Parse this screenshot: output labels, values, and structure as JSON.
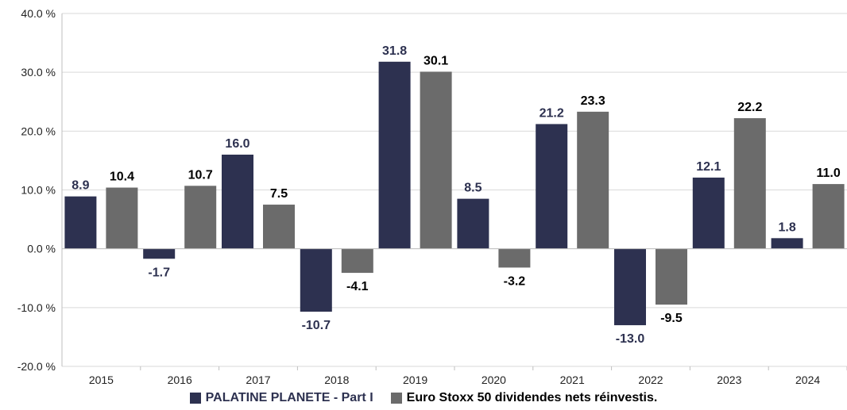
{
  "colors": {
    "palatine": "#2d3150",
    "eurostoxx": "#6b6b6b",
    "grid": "#d9d9d9",
    "axis": "#bfbfbf",
    "label_dark": "#2d3150",
    "label_black": "#000000"
  },
  "chart_data": {
    "type": "bar",
    "categories": [
      "2015",
      "2016",
      "2017",
      "2018",
      "2019",
      "2020",
      "2021",
      "2022",
      "2023",
      "2024"
    ],
    "series": [
      {
        "name": "PALATINE PLANETE - Part I",
        "values": [
          8.9,
          -1.7,
          16.0,
          -10.7,
          31.8,
          8.5,
          21.2,
          -13.0,
          12.1,
          1.8
        ],
        "labels": [
          "8.9",
          "-1.7",
          "16.0",
          "-10.7",
          "31.8",
          "8.5",
          "21.2",
          "-13.0",
          "12.1",
          "1.8"
        ]
      },
      {
        "name": "Euro Stoxx 50 dividendes nets réinvestis.",
        "values": [
          10.4,
          10.7,
          7.5,
          -4.1,
          30.1,
          -3.2,
          23.3,
          -9.5,
          22.2,
          11.0
        ],
        "labels": [
          "10.4",
          "10.7",
          "7.5",
          "-4.1",
          "30.1",
          "-3.2",
          "23.3",
          "-9.5",
          "22.2",
          "11.0"
        ]
      }
    ],
    "ylim": [
      -20,
      40
    ],
    "yticks": [
      40,
      30,
      20,
      10,
      0,
      -10,
      -20
    ],
    "ytick_labels": [
      "40.0 %",
      "30.0 %",
      "20.0 %",
      "10.0 %",
      "0.0 %",
      "-10.0 %",
      "-20.0 %"
    ],
    "grid": true,
    "legend_position": "bottom",
    "xlabel": "",
    "ylabel": "",
    "title": ""
  }
}
